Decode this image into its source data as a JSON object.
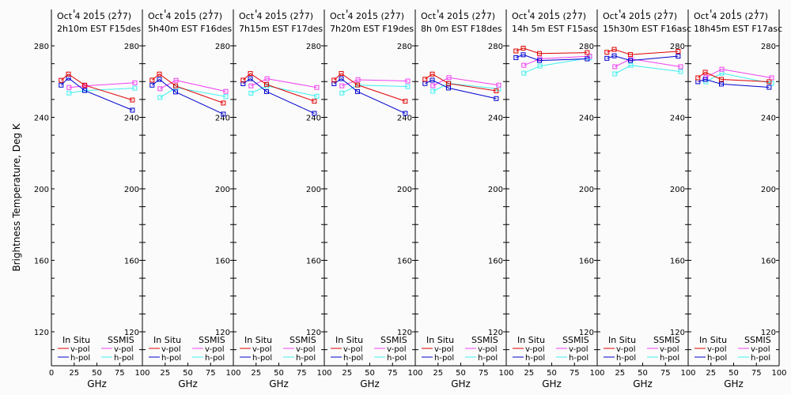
{
  "chart_data": {
    "type": "line",
    "ylabel": "Brightness Temperature, Deg K",
    "xlabel": "GHz",
    "xlim": [
      0,
      100
    ],
    "ylim": [
      102,
      290
    ],
    "xticks": [
      0,
      25,
      50,
      75,
      100
    ],
    "yticks": [
      120,
      160,
      200,
      240,
      280
    ],
    "legend": {
      "placement": "bottom",
      "groups": [
        {
          "title": "In Situ",
          "entries": [
            {
              "label": "v-pol",
              "color": "#e00000"
            },
            {
              "label": "h-pol",
              "color": "#0000d0"
            }
          ]
        },
        {
          "title": "SSMIS",
          "entries": [
            {
              "label": "v-pol",
              "color": "#f040f0"
            },
            {
              "label": "h-pol",
              "color": "#40f0f0"
            }
          ]
        }
      ]
    },
    "series_colors": {
      "insitu_v": "#e00000",
      "insitu_h": "#0000d0",
      "ssmis_v": "#f040f0",
      "ssmis_h": "#40f0f0"
    },
    "insitu_x": [
      10.7,
      18.7,
      36.5,
      89
    ],
    "ssmis_x": [
      19.4,
      37,
      91.7
    ],
    "panels": [
      {
        "title1": "Oct 4 2015 (277)",
        "title2": "2h10m EST F15des",
        "insitu_v": [
          260.7,
          264.2,
          258.0,
          249.7
        ],
        "insitu_h": [
          258.0,
          262.0,
          255.0,
          244.0
        ],
        "ssmis_v": [
          256.7,
          257.6,
          259.3
        ],
        "ssmis_h": [
          253.6,
          255.0,
          256.3
        ]
      },
      {
        "title1": "Oct 4 2015 (277)",
        "title2": "5h40m EST F16des",
        "insitu_v": [
          260.8,
          264.2,
          257.6,
          248.0
        ],
        "insitu_h": [
          258.0,
          261.2,
          254.2,
          241.8
        ],
        "ssmis_v": [
          256.0,
          260.7,
          254.5
        ],
        "ssmis_h": [
          251.1,
          256.6,
          251.6
        ]
      },
      {
        "title1": "Oct 4 2015 (277)",
        "title2": "7h15m EST F17des",
        "insitu_v": [
          260.8,
          264.5,
          258.4,
          249.0
        ],
        "insitu_h": [
          258.8,
          261.6,
          254.4,
          242.2
        ],
        "ssmis_v": [
          257.6,
          261.6,
          256.7
        ],
        "ssmis_h": [
          253.5,
          257.6,
          251.8
        ]
      },
      {
        "title1": "Oct 4 2015 (277)",
        "title2": "7h20m EST F19des",
        "insitu_v": [
          260.8,
          264.5,
          258.1,
          249.0
        ],
        "insitu_h": [
          258.8,
          261.6,
          254.4,
          242.2
        ],
        "ssmis_v": [
          257.6,
          261.0,
          260.3
        ],
        "ssmis_h": [
          253.6,
          258.0,
          257.2
        ]
      },
      {
        "title1": "Oct 4 2015 (277)",
        "title2": "8h 0m EST F18des",
        "insitu_v": [
          261.3,
          264.2,
          258.9,
          254.8
        ],
        "insitu_h": [
          258.9,
          260.8,
          256.4,
          250.5
        ],
        "ssmis_v": [
          257.7,
          262.2,
          258.0
        ],
        "ssmis_h": [
          254.6,
          259.0,
          255.9
        ]
      },
      {
        "title1": "Oct 4 2015 (277)",
        "title2": "14h 5m EST F15asc",
        "insitu_v": [
          277.1,
          278.7,
          275.7,
          276.2
        ],
        "insitu_h": [
          273.4,
          275.0,
          271.8,
          272.7
        ],
        "ssmis_v": [
          269.1,
          272.7,
          274.2
        ],
        "ssmis_h": [
          264.7,
          268.7,
          273.3
        ]
      },
      {
        "title1": "Oct 4 2015 (277)",
        "title2": "15h30m EST F16asc",
        "insitu_v": [
          276.4,
          278.0,
          275.1,
          276.9
        ],
        "insitu_h": [
          273.0,
          274.4,
          271.8,
          274.2
        ],
        "ssmis_v": [
          268.3,
          272.7,
          268.3
        ],
        "ssmis_h": [
          264.3,
          269.1,
          265.6
        ]
      },
      {
        "title1": "Oct 4 2015 (277)",
        "title2": "18h45m EST F17asc",
        "insitu_v": [
          262.1,
          265.2,
          261.2,
          259.9
        ],
        "insitu_h": [
          259.9,
          261.2,
          258.6,
          256.8
        ],
        "ssmis_v": [
          262.4,
          266.9,
          262.1
        ],
        "ssmis_h": [
          259.9,
          264.7,
          259.0
        ]
      }
    ]
  }
}
